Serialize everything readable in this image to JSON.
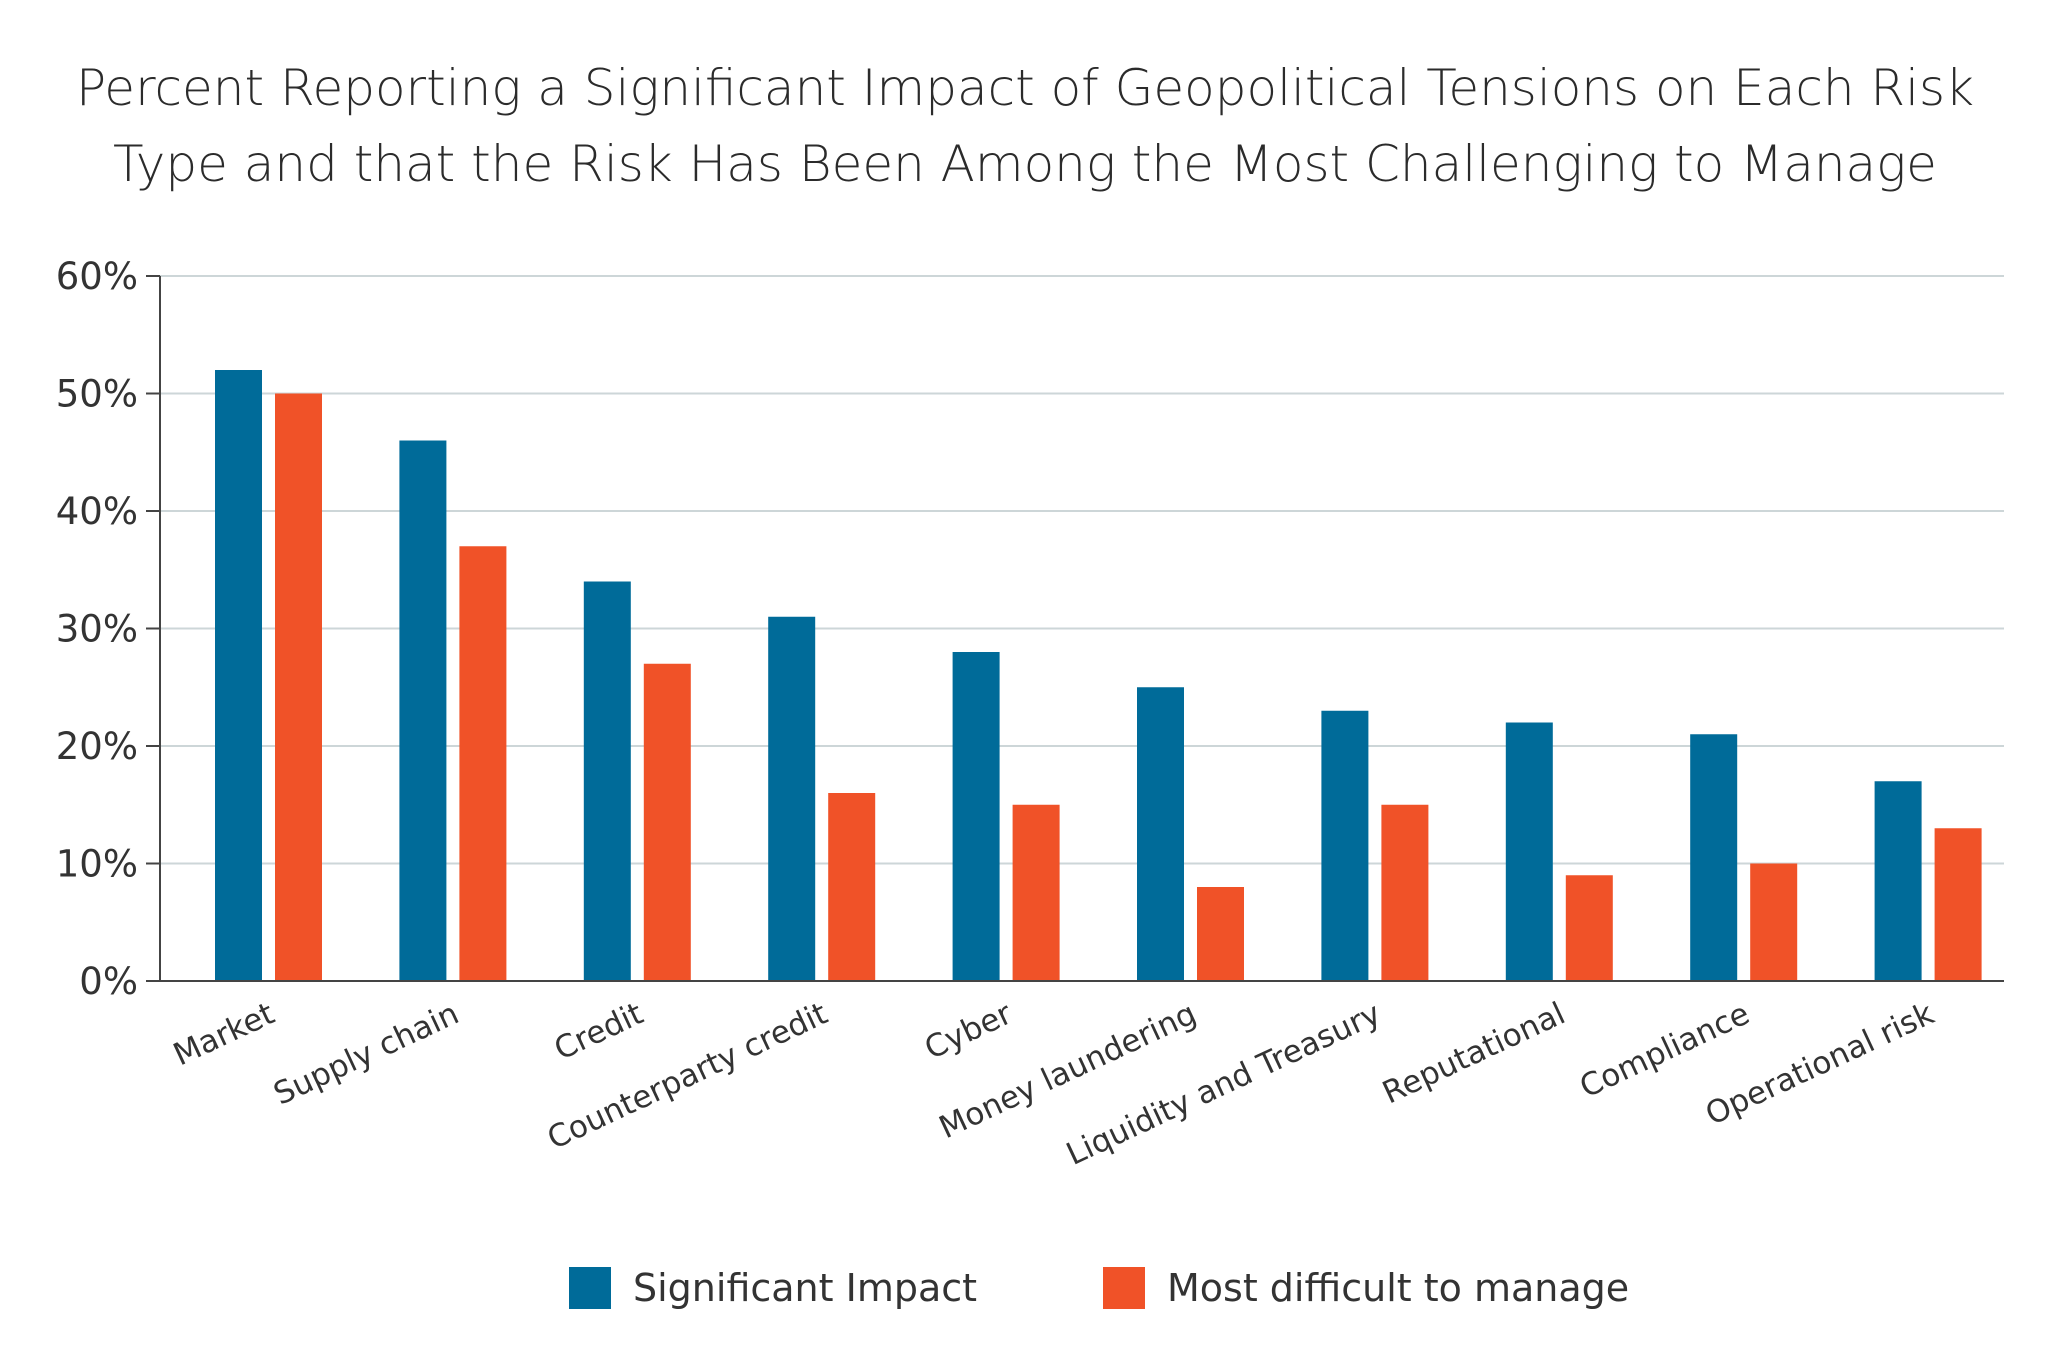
{
  "chart_data": {
    "type": "bar",
    "title": "Percent Reporting a Significant Impact of Geopolitical Tensions on Each Risk Type and that the Risk Has Been Among the Most Challenging to Manage",
    "title_lines": [
      "Percent Reporting a Significant Impact of Geopolitical Tensions on Each Risk",
      "Type and that the Risk Has Been Among the Most Challenging to Manage"
    ],
    "categories": [
      "Market",
      "Supply chain",
      "Credit",
      "Counterparty credit",
      "Cyber",
      "Money laundering",
      "Liquidity and Treasury",
      "Reputational",
      "Compliance",
      "Operational risk"
    ],
    "series": [
      {
        "name": "Significant Impact",
        "color": "#006B99",
        "values": [
          52,
          46,
          34,
          31,
          28,
          25,
          23,
          22,
          21,
          17
        ]
      },
      {
        "name": "Most difficult to manage",
        "color": "#F05228",
        "values": [
          50,
          37,
          27,
          16,
          15,
          8,
          15,
          9,
          10,
          13
        ]
      }
    ],
    "xlabel": "",
    "ylabel": "",
    "ylim": [
      0,
      60
    ],
    "yticks": [
      0,
      10,
      20,
      30,
      40,
      50,
      60
    ],
    "ytick_labels": [
      "0%",
      "10%",
      "20%",
      "30%",
      "40%",
      "50%",
      "60%"
    ],
    "grid": true,
    "legend_position": "bottom"
  }
}
